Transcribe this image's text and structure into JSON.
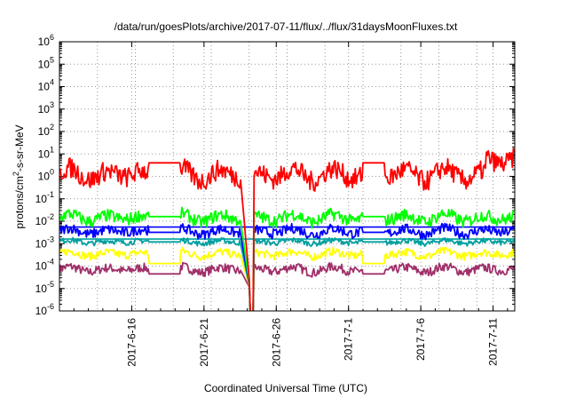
{
  "chart_data": {
    "type": "line",
    "title": "/data/run/goesPlots/archive/2017-07-11/flux/../flux/31daysMoonFluxes.txt",
    "xlabel": "Coordinated Universal Time (UTC)",
    "ylabel_parts": [
      "protons/cm",
      "2",
      "-s-sr-MeV"
    ],
    "xlim": [
      "2017-06-11",
      "2017-07-12 12:00"
    ],
    "y_scale": "log",
    "ylim": [
      1e-06,
      1000000.0
    ],
    "y_ticks": [
      {
        "base": "10",
        "exp": "-6"
      },
      {
        "base": "10",
        "exp": "-5"
      },
      {
        "base": "10",
        "exp": "-4"
      },
      {
        "base": "10",
        "exp": "-3"
      },
      {
        "base": "10",
        "exp": "-2"
      },
      {
        "base": "10",
        "exp": "-1"
      },
      {
        "base": "10",
        "exp": "0"
      },
      {
        "base": "10",
        "exp": "1"
      },
      {
        "base": "10",
        "exp": "2"
      },
      {
        "base": "10",
        "exp": "3"
      },
      {
        "base": "10",
        "exp": "4"
      },
      {
        "base": "10",
        "exp": "5"
      },
      {
        "base": "10",
        "exp": "6"
      }
    ],
    "x_ticks": [
      {
        "label": "2017-6-16",
        "date": "2017-06-16"
      },
      {
        "label": "2017-6-21",
        "date": "2017-06-21"
      },
      {
        "label": "2017-6-26",
        "date": "2017-06-26"
      },
      {
        "label": "2017-7-1",
        "date": "2017-07-01"
      },
      {
        "label": "2017-7-6",
        "date": "2017-07-06"
      },
      {
        "label": "2017-7-11",
        "date": "2017-07-11"
      }
    ],
    "grid": true,
    "series": [
      {
        "color": "#ff0000",
        "level": 1.2,
        "spread": 0.45,
        "gap_level": 4.0
      },
      {
        "color": "#00ff00",
        "level": 0.014,
        "spread": 0.28,
        "gap_level": 0.016
      },
      {
        "color": "#0000ff",
        "level": 0.0035,
        "spread": 0.22,
        "gap_level": 0.0032
      },
      {
        "color": "#00a0a0",
        "level": 0.0012,
        "spread": 0.12,
        "gap_level": 0.0012
      },
      {
        "color": "#ffff00",
        "level": 0.00035,
        "spread": 0.18,
        "gap_level": 0.00013
      },
      {
        "color": "#a0306a",
        "level": 7e-05,
        "spread": 0.2,
        "gap_level": 4.5e-05
      }
    ],
    "data_gaps": [
      [
        "2017-06-17 04:00",
        "2017-06-19 08:00"
      ],
      [
        "2017-07-02 00:00",
        "2017-07-03 12:00"
      ]
    ],
    "dropout": [
      "2017-06-23 12:00",
      "2017-06-24 10:00"
    ],
    "extra_flat_lines": [
      {
        "color": "#0000ff",
        "level": 0.0055,
        "from": "2017-06-11",
        "to": "2017-07-12 12:00"
      },
      {
        "color": "#00a0a0",
        "level": 0.0016,
        "from": "2017-06-11",
        "to": "2017-07-12 12:00"
      }
    ]
  }
}
